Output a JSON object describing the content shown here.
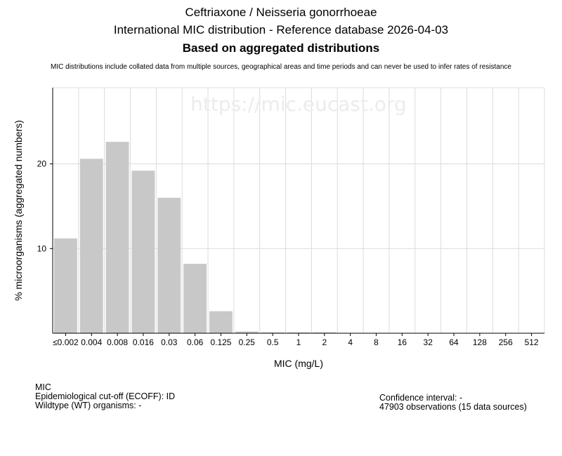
{
  "header": {
    "title": "Ceftriaxone / Neisseria gonorrhoeae",
    "subtitle": "International MIC distribution - Reference database 2026-04-03",
    "aggregation": "Based on aggregated distributions",
    "note": "MIC distributions include collated data from multiple sources, geographical areas and time periods and can never be used to infer rates of resistance"
  },
  "chart_data": {
    "type": "bar",
    "watermark": "https://mic.eucast.org",
    "xlabel": "MIC (mg/L)",
    "ylabel": "% microorganisms (aggregated numbers)",
    "categories": [
      "≤0.002",
      "0.004",
      "0.008",
      "0.016",
      "0.03",
      "0.06",
      "0.125",
      "0.25",
      "0.5",
      "1",
      "2",
      "4",
      "8",
      "16",
      "32",
      "64",
      "128",
      "256",
      "512"
    ],
    "values": [
      11.2,
      20.6,
      22.6,
      19.2,
      16.0,
      8.2,
      2.6,
      0.2,
      0.1,
      0.1,
      0.1,
      0,
      0,
      0,
      0,
      0,
      0,
      0,
      0
    ],
    "yticks": [
      10,
      20
    ],
    "ylim": [
      0,
      29
    ],
    "grid": true,
    "bar_color": "#c8c8c8"
  },
  "footer": {
    "mic_label": "MIC",
    "ecoff": "Epidemiological cut-off (ECOFF): ID",
    "wildtype": "Wildtype (WT) organisms:  -",
    "confidence": "Confidence interval: -",
    "observations": "47903 observations (15 data sources)"
  }
}
